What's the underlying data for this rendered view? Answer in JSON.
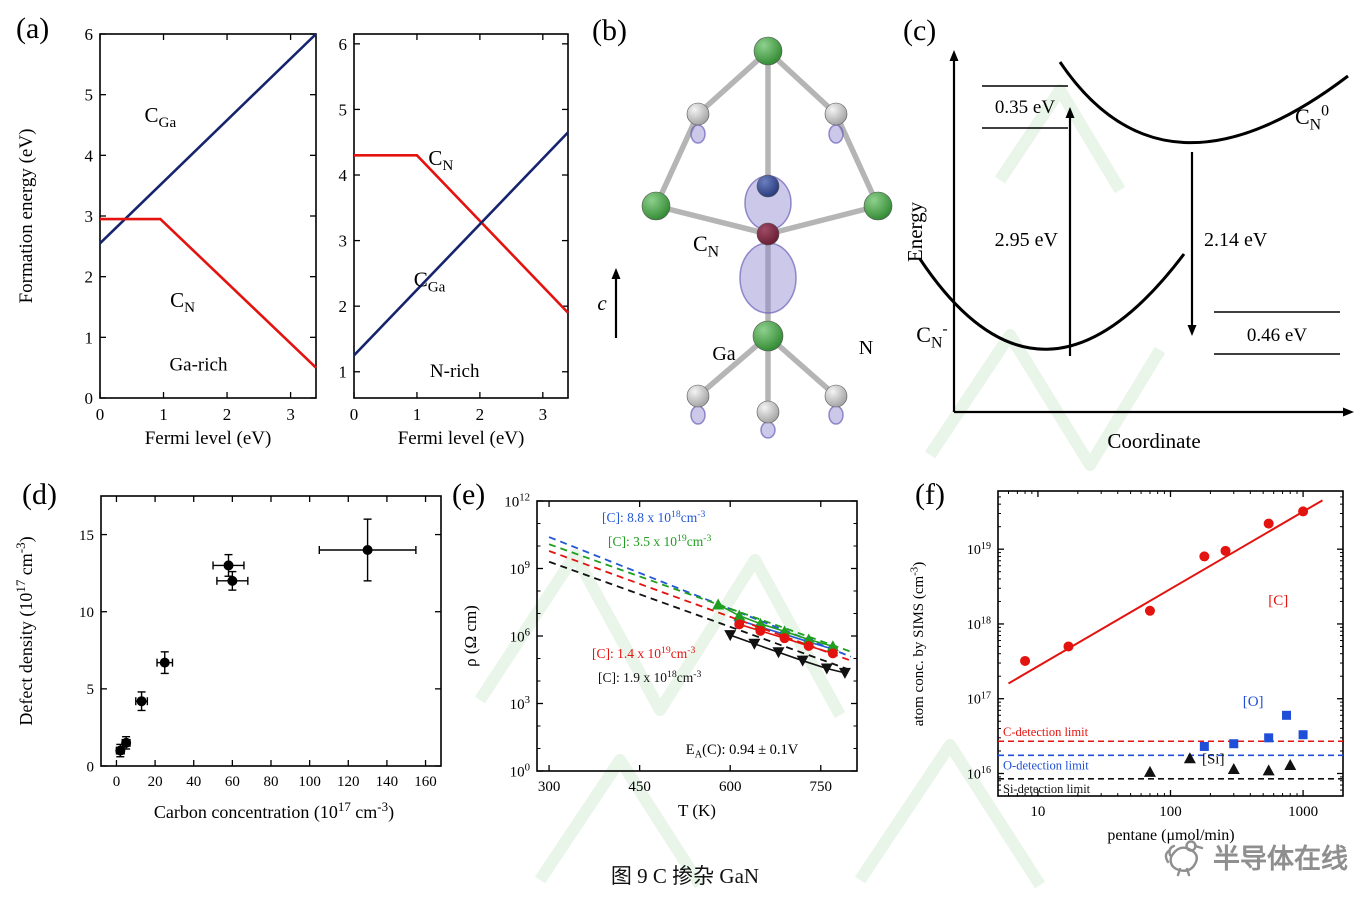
{
  "panels": {
    "a": "(a)",
    "b": "(b)",
    "c": "(c)",
    "d": "(d)",
    "e": "(e)",
    "f": "(f)"
  },
  "caption": "图 9 C 掺杂 GaN",
  "brand": {
    "name": "半导体在线",
    "color": "#8f8f8f"
  },
  "watermark": {
    "color": "#d8efd8"
  },
  "chart_data": [
    {
      "id": "a_left",
      "type": "line",
      "title": "Ga-rich",
      "xlabel": "Fermi level (eV)",
      "ylabel": "Formation energy (eV)",
      "xlim": [
        0,
        3.4
      ],
      "ylim": [
        0,
        6
      ],
      "xticks": [
        0,
        1,
        2,
        3
      ],
      "yticks": [
        0,
        1,
        2,
        3,
        4,
        5,
        6
      ],
      "title_at": [
        1.55,
        0.45
      ],
      "series": [
        {
          "name": "C_Ga",
          "label": "C_{Ga}",
          "color": "#16246e",
          "points": [
            [
              0,
              2.55
            ],
            [
              3.4,
              6.0
            ]
          ],
          "label_at": [
            0.95,
            4.55
          ]
        },
        {
          "name": "C_N",
          "label": "C_{N}",
          "color": "#e3130f",
          "points": [
            [
              0,
              2.95
            ],
            [
              0.95,
              2.95
            ],
            [
              3.4,
              0.5
            ]
          ],
          "label_at": [
            1.3,
            1.5
          ]
        }
      ]
    },
    {
      "id": "a_right",
      "type": "line",
      "title": "N-rich",
      "xlabel": "Fermi level (eV)",
      "xlim": [
        0,
        3.4
      ],
      "ylim": [
        0.6,
        6.15
      ],
      "xticks": [
        0,
        1,
        2,
        3
      ],
      "yticks": [
        1,
        2,
        3,
        4,
        5,
        6
      ],
      "title_at": [
        1.6,
        0.92
      ],
      "series": [
        {
          "name": "C_N",
          "label": "C_{N}",
          "color": "#e3130f",
          "points": [
            [
              0,
              4.3
            ],
            [
              1.0,
              4.3
            ],
            [
              3.4,
              1.9
            ]
          ],
          "label_at": [
            1.38,
            4.15
          ]
        },
        {
          "name": "C_Ga",
          "label": "C_{Ga}",
          "color": "#16246e",
          "points": [
            [
              0,
              1.25
            ],
            [
              3.4,
              4.65
            ]
          ],
          "label_at": [
            1.2,
            2.3
          ]
        }
      ]
    },
    {
      "id": "b",
      "type": "structure",
      "labels": {
        "defect": "C_{N}",
        "axis_c": "c",
        "ga": "Ga",
        "n": "N"
      },
      "atom_colors": {
        "ga": "#1c7a1c",
        "n": "#bdbdbd",
        "c": "#5a1428",
        "orbital": "#8f86cf",
        "navy": "#1a2a6a"
      }
    },
    {
      "id": "c",
      "type": "config-coordinate",
      "xlabel": "Coordinate",
      "ylabel": "Energy",
      "upper_state": "C_{N}^{0}",
      "lower_state": "C_{N}^{-}",
      "absorption": "2.95 eV",
      "emission": "2.14 eV",
      "upper_offset": "0.35 eV",
      "lower_offset": "0.46 eV"
    },
    {
      "id": "d",
      "type": "scatter",
      "xlabel": "Carbon concentration (10^{17} cm^{-3})",
      "ylabel": "Defect density (10^{17} cm^{-3})",
      "xlim": [
        -8,
        168
      ],
      "ylim": [
        0,
        17.5
      ],
      "xticks": [
        0,
        20,
        40,
        60,
        80,
        100,
        120,
        140,
        160
      ],
      "yticks": [
        0,
        5,
        10,
        15
      ],
      "points": [
        {
          "x": 2,
          "y": 1.0,
          "xerr": 2,
          "yerr": 0.4
        },
        {
          "x": 5,
          "y": 1.5,
          "xerr": 2,
          "yerr": 0.4
        },
        {
          "x": 13,
          "y": 4.2,
          "xerr": 3,
          "yerr": 0.6
        },
        {
          "x": 25,
          "y": 6.7,
          "xerr": 4,
          "yerr": 0.7
        },
        {
          "x": 58,
          "y": 13,
          "xerr": 8,
          "yerr": 0.7
        },
        {
          "x": 60,
          "y": 12,
          "xerr": 8,
          "yerr": 0.6
        },
        {
          "x": 130,
          "y": 14,
          "xerr": 25,
          "yerr": 2
        }
      ]
    },
    {
      "id": "e",
      "type": "line-log",
      "xlabel": "T (K)",
      "ylabel": "ρ (Ω cm)",
      "xlim": [
        280,
        810
      ],
      "xticks": [
        300,
        450,
        600,
        750
      ],
      "ylog": [
        1,
        1000000000000.0
      ],
      "yticks": [
        1,
        1000.0,
        1000000.0,
        1000000000.0,
        1000000000000.0
      ],
      "ytick_labels": [
        "10^{0}",
        "10^{3}",
        "10^{6}",
        "10^{9}",
        "10^{12}"
      ],
      "annotation": "E_{A}(C): 0.94 ± 0.1V",
      "series": [
        {
          "name": "blue",
          "color": "#2257d6",
          "marker": "circle",
          "legend": "[C]: 8.8 x 10^{18}cm^{-3}",
          "fit": [
            [
              300,
              25000000000.0
            ],
            [
              800,
              120000.0
            ]
          ],
          "points": [
            [
              615,
              5000000.0
            ],
            [
              650,
              2500000.0
            ],
            [
              690,
              1200000.0
            ],
            [
              730,
              550000.0
            ],
            [
              770,
              260000.0
            ]
          ]
        },
        {
          "name": "green",
          "color": "#1f9e1f",
          "marker": "triangle-up",
          "legend": "[C]: 3.5 x 10^{19}cm^{-3}",
          "fit": [
            [
              300,
              12000000000.0
            ],
            [
              800,
              200000.0
            ]
          ],
          "points": [
            [
              580,
              25000000.0
            ],
            [
              615,
              8000000.0
            ],
            [
              650,
              3500000.0
            ],
            [
              690,
              1600000.0
            ],
            [
              730,
              700000.0
            ],
            [
              770,
              350000.0
            ]
          ]
        },
        {
          "name": "red",
          "color": "#e3130f",
          "marker": "circle",
          "legend": "[C]: 1.4 x 10^{19}cm^{-3}",
          "fit": [
            [
              300,
              6000000000.0
            ],
            [
              800,
              80000.0
            ]
          ],
          "points": [
            [
              615,
              3300000.0
            ],
            [
              650,
              1700000.0
            ],
            [
              690,
              800000.0
            ],
            [
              730,
              360000.0
            ],
            [
              770,
              170000.0
            ]
          ]
        },
        {
          "name": "black",
          "color": "#111111",
          "marker": "triangle-down",
          "legend": "[C]: 1.9 x 10^{18}cm^{-3}",
          "fit": [
            [
              300,
              2000000000.0
            ],
            [
              800,
              30000.0
            ]
          ],
          "points": [
            [
              600,
              1100000.0
            ],
            [
              640,
              450000.0
            ],
            [
              680,
              190000.0
            ],
            [
              720,
              80000.0
            ],
            [
              760,
              36000.0
            ],
            [
              790,
              23000.0
            ]
          ]
        }
      ]
    },
    {
      "id": "f",
      "type": "scatter-loglog",
      "xlabel": "pentane (μmol/min)",
      "ylabel": "atom conc. by SIMS (cm^{-3})",
      "xlog": [
        5,
        2000
      ],
      "xticks": [
        10,
        100,
        1000
      ],
      "xtick_labels": [
        "10",
        "100",
        "1000"
      ],
      "ylog": [
        5000000000000000.0,
        6e+19
      ],
      "yticks": [
        1e+16,
        1e+17,
        1e+18,
        1e+19
      ],
      "ytick_labels": [
        "10^{16}",
        "10^{17}",
        "10^{18}",
        "10^{19}"
      ],
      "series": [
        {
          "name": "C",
          "label": "[C]",
          "color": "#e3130f",
          "marker": "circle",
          "points": [
            [
              8,
              3.2e+17
            ],
            [
              17,
              5e+17
            ],
            [
              70,
              1.5e+18
            ],
            [
              180,
              8e+18
            ],
            [
              260,
              9.5e+18
            ],
            [
              550,
              2.2e+19
            ],
            [
              1000,
              3.2e+19
            ]
          ],
          "fit": [
            [
              6,
              1.6e+17
            ],
            [
              1400,
              4.5e+19
            ]
          ],
          "label_at": [
            650,
            1.8e+18
          ]
        },
        {
          "name": "O",
          "label": "[O]",
          "color": "#1f4fd8",
          "marker": "square",
          "points": [
            [
              180,
              2.3e+16
            ],
            [
              300,
              2.5e+16
            ],
            [
              550,
              3e+16
            ],
            [
              750,
              6e+16
            ],
            [
              1000,
              3.3e+16
            ]
          ],
          "label_at": [
            420,
            8e+16
          ]
        },
        {
          "name": "Si",
          "label": "[Si]",
          "color": "#111111",
          "marker": "triangle-up",
          "points": [
            [
              70,
              1.05e+16
            ],
            [
              140,
              1.6e+16
            ],
            [
              300,
              1.15e+16
            ],
            [
              550,
              1.1e+16
            ],
            [
              800,
              1.3e+16
            ]
          ],
          "label_at": [
            210,
            1.35e+16
          ]
        }
      ],
      "limits": [
        {
          "label": "C-detection limit",
          "color": "#e3130f",
          "y": 2.7e+16
        },
        {
          "label": "O-detection limit",
          "color": "#1f4fd8",
          "y": 1.75e+16
        },
        {
          "label": "Si-detection limit",
          "color": "#111111",
          "y": 8500000000000000.0
        }
      ]
    }
  ]
}
